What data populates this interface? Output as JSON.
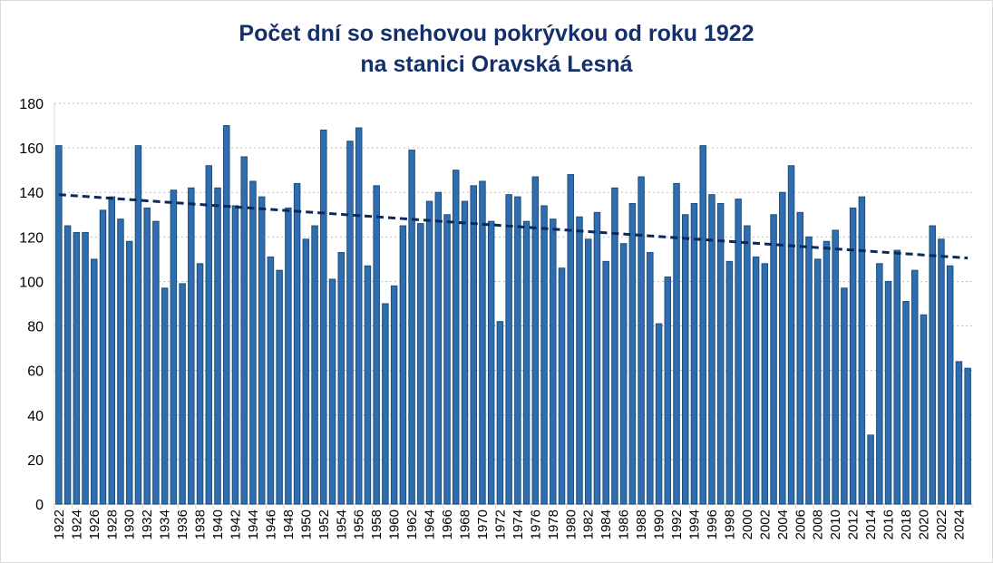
{
  "chart_data": {
    "type": "bar",
    "title_line1": "Počet dní so snehovou pokrývkou od roku 1922",
    "title_line2": "na stanici Oravská Lesná",
    "xlabel": "",
    "ylabel": "",
    "ylim": [
      0,
      180
    ],
    "yticks": [
      0,
      20,
      40,
      60,
      80,
      100,
      120,
      140,
      160,
      180
    ],
    "grid": "horizontal dotted",
    "legend": "none",
    "bar_color": "#2e6db0",
    "bar_border": "#1f4e79",
    "trend_color": "#0b2a5b",
    "trendline": {
      "type": "linear",
      "start": 139,
      "end": 110.5
    },
    "categories": [
      1922,
      1923,
      1924,
      1925,
      1926,
      1927,
      1928,
      1929,
      1930,
      1931,
      1932,
      1933,
      1934,
      1935,
      1936,
      1937,
      1938,
      1939,
      1940,
      1941,
      1942,
      1943,
      1944,
      1945,
      1946,
      1947,
      1948,
      1949,
      1950,
      1951,
      1952,
      1953,
      1954,
      1955,
      1956,
      1957,
      1958,
      1959,
      1960,
      1961,
      1962,
      1963,
      1964,
      1965,
      1966,
      1967,
      1968,
      1969,
      1970,
      1971,
      1972,
      1973,
      1974,
      1975,
      1976,
      1977,
      1978,
      1979,
      1980,
      1981,
      1982,
      1983,
      1984,
      1985,
      1986,
      1987,
      1988,
      1989,
      1990,
      1991,
      1992,
      1993,
      1994,
      1995,
      1996,
      1997,
      1998,
      1999,
      2000,
      2001,
      2002,
      2003,
      2004,
      2005,
      2006,
      2007,
      2008,
      2009,
      2010,
      2011,
      2012,
      2013,
      2014,
      2015,
      2016,
      2017,
      2018,
      2019,
      2020,
      2021,
      2022,
      2023,
      2024,
      2025
    ],
    "values": [
      161,
      125,
      122,
      122,
      110,
      132,
      138,
      128,
      118,
      161,
      133,
      127,
      97,
      141,
      99,
      142,
      108,
      152,
      142,
      170,
      134,
      156,
      145,
      138,
      111,
      105,
      133,
      144,
      119,
      125,
      168,
      101,
      113,
      163,
      169,
      107,
      143,
      90,
      98,
      125,
      159,
      126,
      136,
      140,
      130,
      150,
      136,
      143,
      145,
      127,
      82,
      139,
      138,
      127,
      147,
      134,
      128,
      106,
      148,
      129,
      119,
      131,
      109,
      142,
      117,
      135,
      147,
      113,
      81,
      102,
      144,
      130,
      135,
      161,
      139,
      135,
      109,
      137,
      125,
      111,
      108,
      130,
      140,
      152,
      131,
      120,
      110,
      118,
      123,
      97,
      133,
      138,
      31,
      108,
      100,
      114,
      91,
      105,
      85,
      125,
      119,
      107,
      64,
      61
    ]
  }
}
